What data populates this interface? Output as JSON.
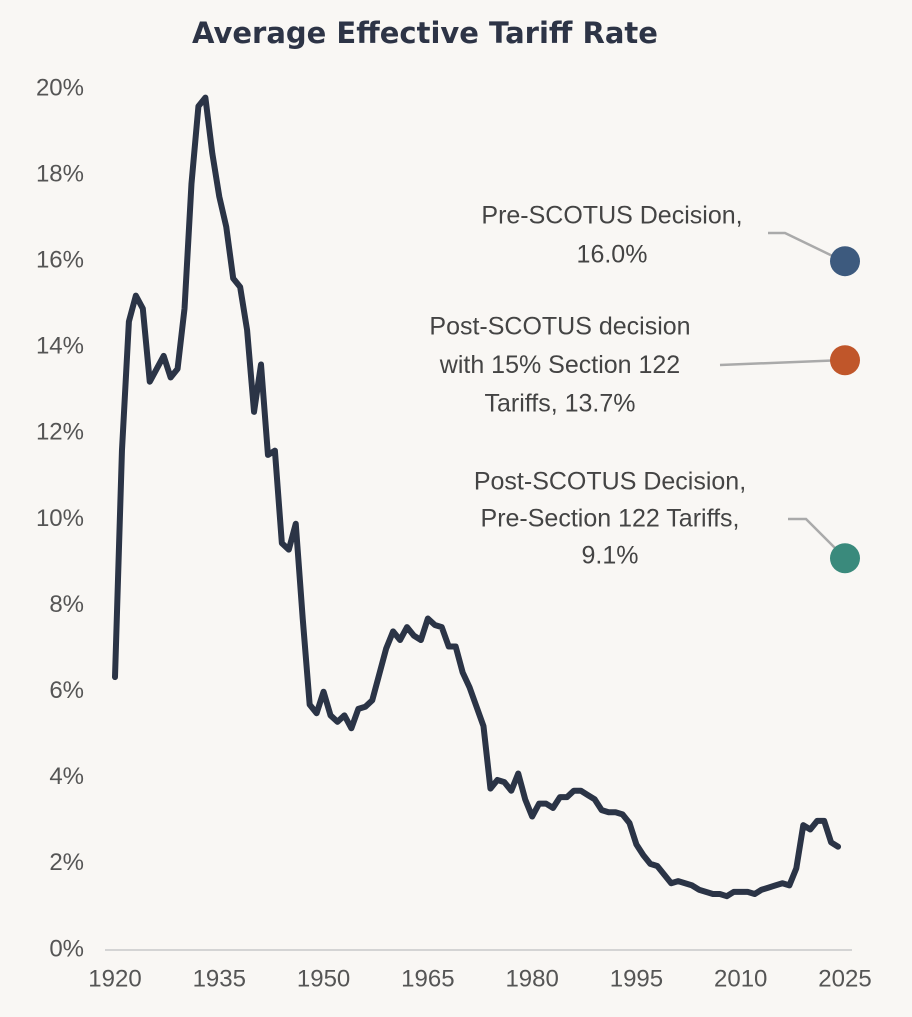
{
  "chart_data": {
    "type": "line",
    "title": "Average Effective Tariff Rate",
    "x": [
      1920,
      1921,
      1922,
      1923,
      1924,
      1925,
      1926,
      1927,
      1928,
      1929,
      1930,
      1931,
      1932,
      1933,
      1934,
      1935,
      1936,
      1937,
      1938,
      1939,
      1940,
      1941,
      1942,
      1943,
      1944,
      1945,
      1946,
      1947,
      1948,
      1949,
      1950,
      1951,
      1952,
      1953,
      1954,
      1955,
      1956,
      1957,
      1958,
      1959,
      1960,
      1961,
      1962,
      1963,
      1964,
      1965,
      1966,
      1967,
      1968,
      1969,
      1970,
      1971,
      1972,
      1973,
      1974,
      1975,
      1976,
      1977,
      1978,
      1979,
      1980,
      1981,
      1982,
      1983,
      1984,
      1985,
      1986,
      1987,
      1988,
      1989,
      1990,
      1991,
      1992,
      1993,
      1994,
      1995,
      1996,
      1997,
      1998,
      1999,
      2000,
      2001,
      2002,
      2003,
      2004,
      2005,
      2006,
      2007,
      2008,
      2009,
      2010,
      2011,
      2012,
      2013,
      2014,
      2015,
      2016,
      2017,
      2018,
      2019,
      2020,
      2021,
      2022,
      2023,
      2024
    ],
    "series": [
      {
        "color": "#2b3446",
        "values": [
          6.34,
          11.6,
          14.6,
          15.2,
          14.9,
          13.2,
          13.5,
          13.8,
          13.3,
          13.5,
          14.9,
          17.8,
          19.6,
          19.8,
          18.5,
          17.5,
          16.8,
          15.6,
          15.4,
          14.4,
          12.5,
          13.6,
          11.5,
          11.6,
          9.45,
          9.3,
          9.9,
          7.7,
          5.7,
          5.5,
          6.0,
          5.45,
          5.3,
          5.45,
          5.15,
          5.6,
          5.65,
          5.8,
          6.4,
          7.0,
          7.4,
          7.2,
          7.5,
          7.3,
          7.2,
          7.7,
          7.55,
          7.5,
          7.05,
          7.05,
          6.45,
          6.1,
          5.65,
          5.2,
          3.75,
          3.95,
          3.9,
          3.7,
          4.1,
          3.5,
          3.1,
          3.4,
          3.4,
          3.3,
          3.55,
          3.55,
          3.7,
          3.7,
          3.6,
          3.5,
          3.25,
          3.2,
          3.2,
          3.15,
          2.95,
          2.45,
          2.2,
          2.0,
          1.95,
          1.75,
          1.55,
          1.6,
          1.55,
          1.5,
          1.4,
          1.35,
          1.3,
          1.3,
          1.25,
          1.35,
          1.35,
          1.35,
          1.3,
          1.4,
          1.45,
          1.5,
          1.55,
          1.5,
          1.9,
          2.9,
          2.8,
          3.0,
          3.0,
          2.5,
          2.4
        ]
      }
    ],
    "points": [
      {
        "x": 2025,
        "value": 16.0,
        "color": "#3d5a7e",
        "label_lines": [
          "Pre-SCOTUS Decision,",
          "16.0%"
        ]
      },
      {
        "x": 2025,
        "value": 13.7,
        "color": "#c0562a",
        "label_lines": [
          "Post-SCOTUS decision",
          "with 15% Section 122",
          "Tariffs, 13.7%"
        ]
      },
      {
        "x": 2025,
        "value": 9.1,
        "color": "#3a8a7c",
        "label_lines": [
          "Post-SCOTUS Decision,",
          "Pre-Section 122 Tariffs,",
          "9.1%"
        ]
      }
    ],
    "xlim": [
      1920,
      2025
    ],
    "xticks": [
      1920,
      1935,
      1950,
      1965,
      1980,
      1995,
      2010,
      2025
    ],
    "ylim": [
      0,
      20
    ],
    "yticks": [
      {
        "value": 0,
        "label": "0%"
      },
      {
        "value": 2,
        "label": "2%"
      },
      {
        "value": 4,
        "label": "4%"
      },
      {
        "value": 6,
        "label": "6%"
      },
      {
        "value": 8,
        "label": "8%"
      },
      {
        "value": 10,
        "label": "10%"
      },
      {
        "value": 12,
        "label": "12%"
      },
      {
        "value": 14,
        "label": "14%"
      },
      {
        "value": 16,
        "label": "16%"
      },
      {
        "value": 18,
        "label": "18%"
      },
      {
        "value": 20,
        "label": "20%"
      }
    ],
    "grid": false
  }
}
